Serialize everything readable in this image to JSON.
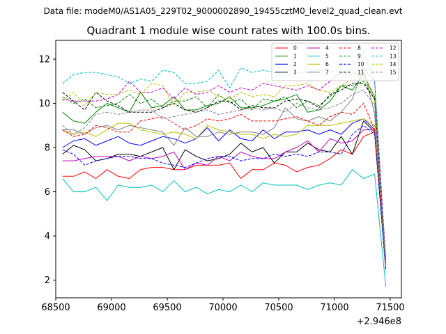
{
  "chart_data": {
    "type": "line",
    "suptitle": "Data file: modeM0/AS1A05_229T02_9000002890_19455cztM0_level2_quad_clean.evt",
    "title": "Quadrant 1 module wise count rates with 100.0s bins.",
    "xlabel": "",
    "ylabel": "",
    "x_offset_label": "+2.946e8",
    "xlim": [
      68500,
      71600
    ],
    "ylim": [
      1.2,
      12.85
    ],
    "xticks": [
      68500,
      69000,
      69500,
      70000,
      70500,
      71000,
      71500
    ],
    "xtick_labels": [
      "68500",
      "69000",
      "69500",
      "70000",
      "70500",
      "71000",
      "71500"
    ],
    "yticks": [
      2,
      4,
      6,
      8,
      10,
      12
    ],
    "ytick_labels": [
      "2",
      "4",
      "6",
      "8",
      "10",
      "12"
    ],
    "legend_position": "upper right",
    "x": [
      68560,
      68660,
      68760,
      68860,
      68960,
      69060,
      69160,
      69260,
      69360,
      69460,
      69560,
      69660,
      69760,
      69860,
      69960,
      70060,
      70160,
      70260,
      70360,
      70460,
      70560,
      70660,
      70760,
      70860,
      70960,
      71060,
      71160,
      71260,
      71360,
      71460
    ],
    "series": [
      {
        "name": "0",
        "color": "#ff0000",
        "dash": "solid",
        "values": [
          6.7,
          6.7,
          6.9,
          6.6,
          7.0,
          6.7,
          6.6,
          7.0,
          7.1,
          7.1,
          7.0,
          7.0,
          7.2,
          7.2,
          7.2,
          7.3,
          6.6,
          7.0,
          7.0,
          7.3,
          7.2,
          6.9,
          7.1,
          7.2,
          7.5,
          7.9,
          7.7,
          8.5,
          8.7,
          2.5
        ]
      },
      {
        "name": "1",
        "color": "#008000",
        "dash": "solid",
        "values": [
          9.6,
          9.2,
          9.1,
          9.6,
          10.0,
          9.8,
          9.6,
          10.5,
          9.8,
          9.9,
          10.3,
          9.7,
          9.7,
          9.9,
          10.0,
          10.3,
          9.8,
          9.8,
          9.9,
          10.1,
          10.2,
          10.4,
          9.6,
          9.7,
          10.1,
          10.8,
          10.6,
          11.3,
          10.3,
          2.7
        ]
      },
      {
        "name": "2",
        "color": "#0000ff",
        "dash": "solid",
        "values": [
          8.0,
          8.3,
          8.4,
          8.1,
          8.3,
          8.5,
          8.2,
          8.1,
          8.3,
          8.5,
          8.4,
          8.2,
          8.4,
          8.9,
          8.3,
          8.8,
          8.4,
          8.3,
          8.8,
          8.4,
          8.7,
          8.7,
          8.8,
          8.6,
          8.8,
          8.6,
          9.1,
          9.3,
          8.8,
          2.6
        ]
      },
      {
        "name": "3",
        "color": "#000000",
        "dash": "solid",
        "values": [
          7.7,
          8.1,
          7.9,
          7.4,
          7.5,
          7.7,
          7.7,
          7.6,
          7.8,
          8.0,
          7.0,
          7.9,
          7.6,
          7.4,
          7.5,
          7.7,
          8.2,
          7.8,
          8.0,
          7.3,
          7.8,
          7.8,
          8.2,
          7.9,
          7.8,
          8.5,
          7.7,
          9.2,
          8.7,
          2.8
        ]
      },
      {
        "name": "4",
        "color": "#bf00bf",
        "dash": "solid",
        "values": [
          7.4,
          7.4,
          7.5,
          7.6,
          7.6,
          7.6,
          7.4,
          7.6,
          7.5,
          7.6,
          7.8,
          7.0,
          7.3,
          7.2,
          7.6,
          7.4,
          7.8,
          7.6,
          7.5,
          7.5,
          7.8,
          8.0,
          8.3,
          7.8,
          8.4,
          8.2,
          8.3,
          8.8,
          8.8,
          2.7
        ]
      },
      {
        "name": "5",
        "color": "#00bfbf",
        "dash": "solid",
        "values": [
          6.6,
          6.0,
          6.0,
          6.2,
          5.6,
          6.3,
          6.2,
          6.2,
          6.3,
          6.0,
          6.5,
          6.0,
          6.2,
          5.9,
          6.1,
          6.0,
          6.3,
          6.0,
          6.4,
          6.3,
          6.3,
          6.3,
          6.1,
          6.3,
          6.4,
          6.3,
          7.0,
          6.6,
          6.8,
          1.7
        ]
      },
      {
        "name": "6",
        "color": "#bfbf00",
        "dash": "solid",
        "values": [
          8.8,
          8.6,
          8.7,
          8.5,
          8.8,
          9.1,
          9.1,
          8.8,
          8.7,
          8.6,
          8.7,
          8.6,
          8.4,
          9.0,
          8.8,
          8.7,
          8.6,
          8.6,
          8.4,
          8.6,
          8.5,
          8.6,
          9.0,
          9.0,
          9.0,
          9.1,
          9.2,
          9.3,
          9.0,
          2.6
        ]
      },
      {
        "name": "7",
        "color": "#808080",
        "dash": "solid",
        "values": [
          8.8,
          8.8,
          8.6,
          8.9,
          9.0,
          8.8,
          9.0,
          8.9,
          8.8,
          8.7,
          8.1,
          8.9,
          8.5,
          8.5,
          8.7,
          8.6,
          8.7,
          8.7,
          8.6,
          8.9,
          9.8,
          9.3,
          9.2,
          9.4,
          9.2,
          9.6,
          10.2,
          11.6,
          9.5,
          2.8
        ]
      },
      {
        "name": "8",
        "color": "#ff0000",
        "dash": "dashed",
        "values": [
          8.8,
          8.5,
          8.6,
          9.0,
          8.9,
          8.7,
          8.7,
          9.2,
          9.3,
          9.4,
          9.1,
          8.8,
          9.0,
          9.3,
          9.2,
          9.3,
          9.5,
          9.2,
          9.2,
          9.2,
          9.3,
          9.4,
          9.2,
          9.0,
          9.4,
          9.6,
          9.5,
          10.0,
          8.8,
          2.9
        ]
      },
      {
        "name": "9",
        "color": "#008000",
        "dash": "dashed",
        "values": [
          10.3,
          10.0,
          10.2,
          9.8,
          9.9,
          10.0,
          10.4,
          10.0,
          10.2,
          9.8,
          10.1,
          10.1,
          10.3,
          9.8,
          10.4,
          10.0,
          10.2,
          9.7,
          10.2,
          10.1,
          10.3,
          9.8,
          10.1,
          9.9,
          10.3,
          10.8,
          10.8,
          11.0,
          10.2,
          2.5
        ]
      },
      {
        "name": "10",
        "color": "#0000ff",
        "dash": "dashed",
        "values": [
          7.9,
          7.7,
          7.2,
          7.4,
          7.5,
          7.6,
          7.6,
          7.5,
          7.5,
          7.3,
          7.2,
          7.1,
          7.3,
          7.5,
          7.6,
          7.6,
          7.4,
          7.5,
          7.5,
          7.7,
          7.6,
          7.7,
          7.6,
          7.8,
          7.8,
          7.7,
          8.6,
          9.0,
          8.6,
          2.4
        ]
      },
      {
        "name": "11",
        "color": "#000000",
        "dash": "dashed",
        "values": [
          10.5,
          10.1,
          9.7,
          10.5,
          10.1,
          9.9,
          9.6,
          9.6,
          9.6,
          9.8,
          10.0,
          9.7,
          9.6,
          9.8,
          10.1,
          10.1,
          9.7,
          9.9,
          9.8,
          9.8,
          10.1,
          10.2,
          10.1,
          9.8,
          10.4,
          10.6,
          10.9,
          10.9,
          10.2,
          2.9
        ]
      },
      {
        "name": "12",
        "color": "#bf00bf",
        "dash": "dashed",
        "values": [
          10.2,
          10.1,
          10.1,
          10.1,
          10.2,
          10.4,
          11.0,
          10.5,
          10.5,
          10.7,
          10.2,
          10.7,
          10.4,
          10.5,
          10.8,
          10.5,
          10.7,
          10.6,
          10.9,
          10.8,
          10.7,
          10.6,
          10.8,
          10.6,
          11.0,
          11.4,
          11.3,
          11.6,
          11.0,
          2.9
        ]
      },
      {
        "name": "13",
        "color": "#00bfbf",
        "dash": "dashed",
        "values": [
          10.9,
          11.3,
          11.4,
          11.4,
          11.3,
          11.2,
          10.9,
          11.1,
          11.0,
          11.5,
          11.4,
          10.9,
          10.9,
          11.0,
          11.5,
          10.7,
          11.6,
          11.4,
          11.5,
          11.4,
          11.2,
          11.4,
          11.4,
          11.5,
          11.5,
          11.4,
          11.6,
          12.4,
          11.0,
          2.6
        ]
      },
      {
        "name": "14",
        "color": "#bfbf00",
        "dash": "dashed",
        "values": [
          10.1,
          10.5,
          9.9,
          10.5,
          10.4,
          10.4,
          10.6,
          10.4,
          10.9,
          10.8,
          9.9,
          10.5,
          10.5,
          10.6,
          10.3,
          10.2,
          10.5,
          10.3,
          10.4,
          10.3,
          10.8,
          10.8,
          10.9,
          10.6,
          10.5,
          10.8,
          11.1,
          11.4,
          10.1,
          2.7
        ]
      },
      {
        "name": "15",
        "color": "#808080",
        "dash": "dashed",
        "values": [
          9.0,
          8.6,
          8.9,
          9.5,
          9.6,
          9.5,
          9.6,
          9.7,
          9.7,
          9.3,
          9.4,
          9.5,
          9.6,
          9.7,
          9.5,
          9.6,
          9.7,
          9.8,
          9.7,
          9.8,
          9.6,
          10.0,
          9.8,
          9.7,
          9.8,
          10.0,
          10.4,
          10.6,
          9.9,
          2.8
        ]
      }
    ]
  }
}
